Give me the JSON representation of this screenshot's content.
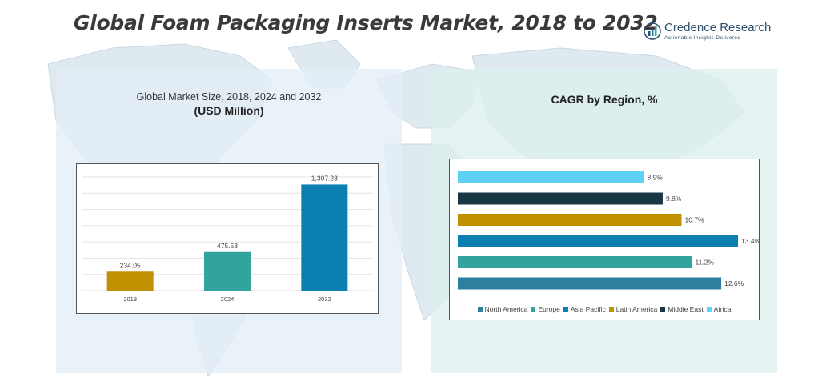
{
  "header": {
    "title": "Global Foam Packaging Inserts Market, 2018 to 2032",
    "brand_name": "Credence Research",
    "brand_tagline": "Actionable Insights Delivered"
  },
  "left_panel": {
    "title": "Global Market Size, 2018, 2024 and 2032",
    "subtitle": "(USD Million)"
  },
  "right_panel": {
    "title": "CAGR by Region, %"
  },
  "colors": {
    "gold": "#bf9000",
    "teal": "#33a39e",
    "blue": "#0a7fb0",
    "steel": "#2e7ea0",
    "navy": "#1a3747",
    "sky": "#5fd1f5",
    "map": "#d9e6ee"
  },
  "chart_data": [
    {
      "type": "bar",
      "title": "Global Market Size, 2018, 2024 and 2032",
      "subtitle": "(USD Million)",
      "categories": [
        "2018",
        "2024",
        "2032"
      ],
      "values": [
        234.05,
        475.53,
        1307.23
      ],
      "labels": [
        "234.05",
        "475.53",
        "1,307.23"
      ],
      "colors": [
        "#bf9000",
        "#33a39e",
        "#0a7fb0"
      ],
      "ylim": [
        0,
        1400
      ],
      "grid": true
    },
    {
      "type": "bar",
      "orientation": "horizontal",
      "title": "CAGR by Region, %",
      "categories": [
        "Africa",
        "Middle East",
        "Latin America",
        "Asia Pacific",
        "Europe",
        "North America"
      ],
      "values": [
        8.9,
        9.8,
        10.7,
        13.4,
        11.2,
        12.6
      ],
      "labels": [
        "8.9%",
        "9.8%",
        "10.7%",
        "13.4%",
        "11.2%",
        "12.6%"
      ],
      "colors": [
        "#5fd1f5",
        "#1a3747",
        "#bf9000",
        "#0a7fb0",
        "#33a39e",
        "#2e7ea0"
      ],
      "xlim": [
        0,
        13.4
      ],
      "legend_position": "bottom",
      "legend": [
        {
          "name": "North America",
          "color": "#2e7ea0"
        },
        {
          "name": "Europe",
          "color": "#33a39e"
        },
        {
          "name": "Asia Pacific",
          "color": "#0a7fb0"
        },
        {
          "name": "Latin America",
          "color": "#bf9000"
        },
        {
          "name": "Middle East",
          "color": "#1a3747"
        },
        {
          "name": "Africa",
          "color": "#5fd1f5"
        }
      ]
    }
  ]
}
